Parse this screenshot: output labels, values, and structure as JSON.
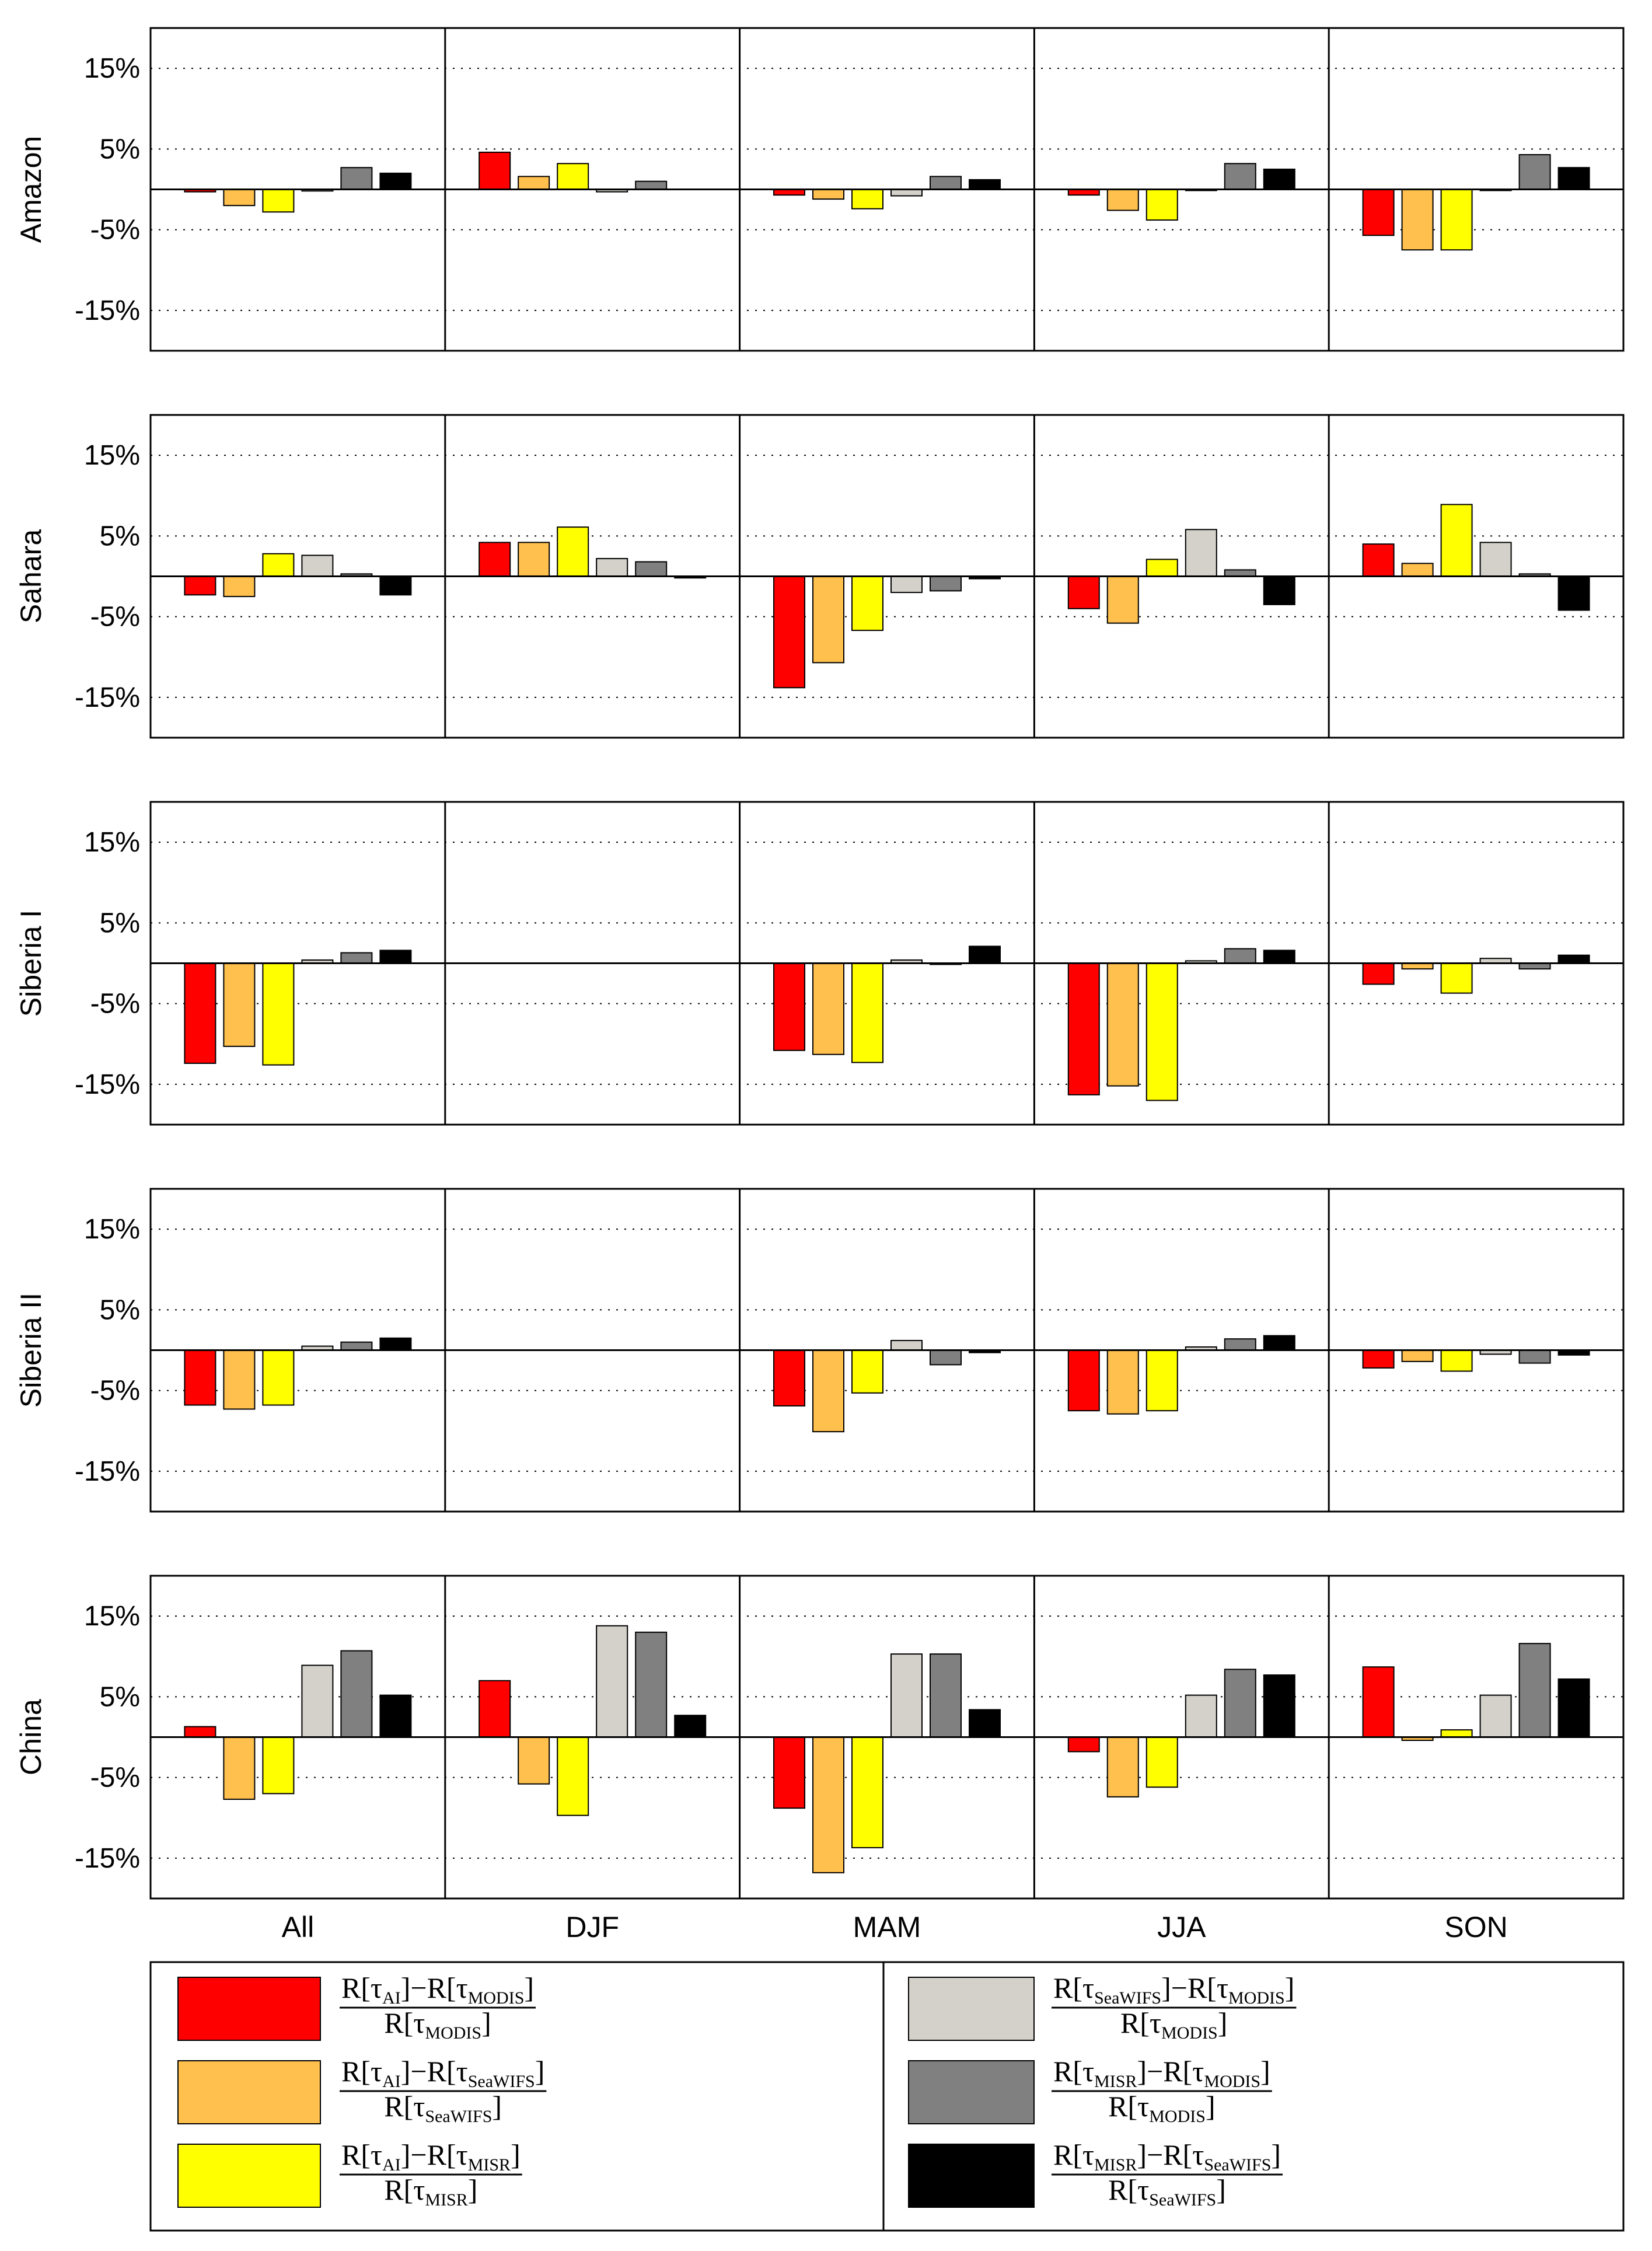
{
  "chart_data": {
    "type": "bar",
    "yticks": [
      15,
      5,
      -5,
      -15
    ],
    "ytick_labels": [
      "15%",
      "5%",
      "-5%",
      "-15%"
    ],
    "ylim": [
      -20,
      20
    ],
    "grid": "dotted horizontal",
    "categories": [
      "All",
      "DJF",
      "MAM",
      "JJA",
      "SON"
    ],
    "series": [
      {
        "key": "ai_modis",
        "color": "#ff0000"
      },
      {
        "key": "ai_seawifs",
        "color": "#ffc04d"
      },
      {
        "key": "ai_misr",
        "color": "#ffff00"
      },
      {
        "key": "seawifs_modis",
        "color": "#d4d1cb"
      },
      {
        "key": "misr_modis",
        "color": "#808080"
      },
      {
        "key": "misr_seawifs",
        "color": "#000000"
      }
    ],
    "panels": [
      {
        "region": "Amazon",
        "values": [
          [
            -0.3,
            -2.0,
            -2.8,
            -0.2,
            2.7,
            2.0
          ],
          [
            4.6,
            1.6,
            3.2,
            -0.3,
            1.0,
            null
          ],
          [
            -0.7,
            -1.2,
            -2.4,
            -0.8,
            1.6,
            1.2
          ],
          [
            -0.7,
            -2.6,
            -3.8,
            0,
            3.2,
            2.5
          ],
          [
            -5.7,
            -7.5,
            -7.5,
            -0.1,
            4.3,
            2.7
          ]
        ]
      },
      {
        "region": "Sahara",
        "values": [
          [
            -2.3,
            -2.5,
            2.8,
            2.6,
            0.3,
            -2.3
          ],
          [
            4.2,
            4.2,
            6.1,
            2.2,
            1.8,
            -0.2
          ],
          [
            -13.8,
            -10.7,
            -6.7,
            -2.0,
            -1.8,
            -0.3
          ],
          [
            -4.0,
            -5.8,
            2.1,
            5.8,
            0.8,
            -3.5
          ],
          [
            4.0,
            1.6,
            8.9,
            4.2,
            0.3,
            -4.2
          ]
        ]
      },
      {
        "region": "Siberia I",
        "values": [
          [
            -12.4,
            -10.3,
            -12.6,
            0.4,
            1.3,
            1.6
          ],
          [
            null,
            null,
            null,
            null,
            null,
            null
          ],
          [
            -10.8,
            -11.3,
            -12.3,
            0.4,
            0,
            2.1
          ],
          [
            -16.3,
            -15.2,
            -17.0,
            0.3,
            1.8,
            1.6
          ],
          [
            -2.6,
            -0.7,
            -3.7,
            0.6,
            -0.7,
            1.0
          ]
        ]
      },
      {
        "region": "Siberia II",
        "values": [
          [
            -6.8,
            -7.3,
            -6.8,
            0.5,
            1.0,
            1.5
          ],
          [
            null,
            null,
            null,
            null,
            null,
            null
          ],
          [
            -6.9,
            -10.1,
            -5.3,
            1.2,
            -1.8,
            -0.3
          ],
          [
            -7.5,
            -7.9,
            -7.5,
            0.4,
            1.4,
            1.8
          ],
          [
            -2.2,
            -1.4,
            -2.6,
            -0.5,
            -1.6,
            -0.6
          ]
        ]
      },
      {
        "region": "China",
        "values": [
          [
            1.3,
            -7.7,
            -7.0,
            8.9,
            10.7,
            5.2
          ],
          [
            7.0,
            -5.8,
            -9.7,
            13.8,
            13.0,
            2.7
          ],
          [
            -8.8,
            -16.8,
            -13.7,
            10.3,
            10.3,
            3.4
          ],
          [
            -1.8,
            -7.4,
            -6.2,
            5.2,
            8.4,
            7.7
          ],
          [
            8.7,
            -0.4,
            0.9,
            5.2,
            11.6,
            7.2
          ]
        ]
      }
    ],
    "legend": [
      {
        "color": "#ff0000",
        "num_a": "R[τ",
        "num_a_sub": "AI",
        "num_b": "]−R[τ",
        "num_b_sub": "MODIS",
        "den": "R[τ",
        "den_sub": "MODIS"
      },
      {
        "color": "#ffc04d",
        "num_a": "R[τ",
        "num_a_sub": "AI",
        "num_b": "]−R[τ",
        "num_b_sub": "SeaWIFS",
        "den": "R[τ",
        "den_sub": "SeaWIFS"
      },
      {
        "color": "#ffff00",
        "num_a": "R[τ",
        "num_a_sub": "AI",
        "num_b": "]−R[τ",
        "num_b_sub": "MISR",
        "den": "R[τ",
        "den_sub": "MISR"
      },
      {
        "color": "#d4d1cb",
        "num_a": "R[τ",
        "num_a_sub": "SeaWIFS",
        "num_b": "]−R[τ",
        "num_b_sub": "MODIS",
        "den": "R[τ",
        "den_sub": "MODIS"
      },
      {
        "color": "#808080",
        "num_a": "R[τ",
        "num_a_sub": "MISR",
        "num_b": "]−R[τ",
        "num_b_sub": "MODIS",
        "den": "R[τ",
        "den_sub": "MODIS"
      },
      {
        "color": "#000000",
        "num_a": "R[τ",
        "num_a_sub": "MISR",
        "num_b": "]−R[τ",
        "num_b_sub": "SeaWIFS",
        "den": "R[τ",
        "den_sub": "SeaWIFS"
      }
    ],
    "bracket_close": "]"
  }
}
